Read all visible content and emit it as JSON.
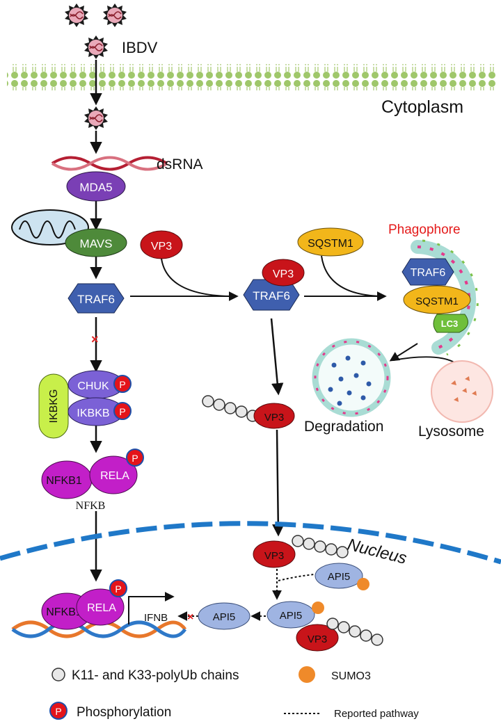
{
  "labels": {
    "ibdv": "IBDV",
    "cytoplasm": "Cytoplasm",
    "dsrna": "dsRNA",
    "phagophore": "Phagophore",
    "degradation": "Degradation",
    "lysosome": "Lysosome",
    "nfkb": "NFKB",
    "nucleus": "Nucleus",
    "ifnb": "IFNB"
  },
  "proteins": {
    "mda5": "MDA5",
    "mavs": "MAVS",
    "traf6": "TRAF6",
    "vp3": "VP3",
    "sqstm1": "SQSTM1",
    "lc3": "LC3",
    "ikbkg": "IKBKG",
    "chuk": "CHUK",
    "ikbkb": "IKBKB",
    "nfkb1": "NFKB1",
    "rela": "RELA",
    "api5": "API5",
    "p": "P"
  },
  "legend": {
    "polyub": "K11- and K33-polyUb chains",
    "sumo3": "SUMO3",
    "phosphorylation": "Phosphorylation",
    "reported": "Reported pathway"
  },
  "colors": {
    "mda5": "#7a3fb5",
    "mavs": "#4e8a3a",
    "traf6": "#3f5fae",
    "vp3": "#c8141a",
    "sqstm1": "#f2b61a",
    "ikbkg": "#c8ef4a",
    "chuk_ikbkb": "#7b61d6",
    "nfkb": "#c21fc8",
    "api5": "#9fb4e2",
    "sumo3": "#ef8a2a",
    "phospho": "#e4141a",
    "membrane": "#9fc76a",
    "nuclear_membrane": "#1f78c8",
    "phagophore_text": "#e41a1a"
  }
}
